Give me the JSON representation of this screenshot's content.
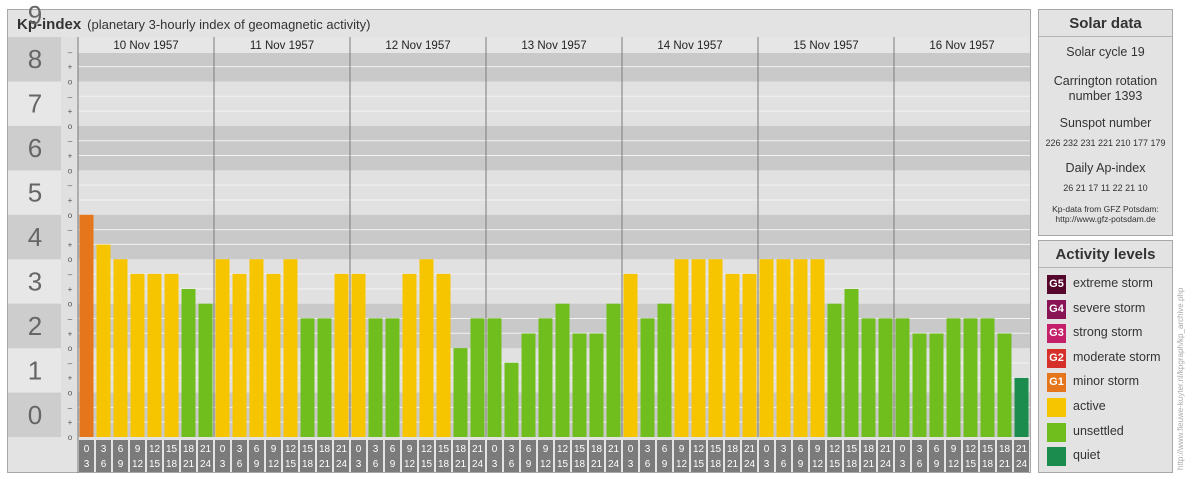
{
  "header": {
    "title": "Kp-index",
    "subtitle": "(planetary 3-hourly index of geomagnetic activity)"
  },
  "chart_data": {
    "type": "bar",
    "ylim": [
      0,
      9
    ],
    "y_ticks": [
      "0",
      "1",
      "2",
      "3",
      "4",
      "5",
      "6",
      "7",
      "8",
      "9"
    ],
    "minor_tick_labels": [
      "o",
      "+",
      "–"
    ],
    "days": [
      "10 Nov 1957",
      "11 Nov 1957",
      "12 Nov 1957",
      "13 Nov 1957",
      "14 Nov 1957",
      "15 Nov 1957",
      "16 Nov 1957"
    ],
    "hour_ticks": [
      [
        "0",
        "3"
      ],
      [
        "3",
        "6"
      ],
      [
        "6",
        "9"
      ],
      [
        "9",
        "12"
      ],
      [
        "12",
        "15"
      ],
      [
        "15",
        "18"
      ],
      [
        "18",
        "21"
      ],
      [
        "21",
        "24"
      ]
    ],
    "values": [
      5.0,
      4.33,
      4.0,
      3.67,
      3.67,
      3.67,
      3.33,
      3.0,
      4.0,
      3.67,
      4.0,
      3.67,
      4.0,
      2.67,
      2.67,
      3.67,
      3.67,
      2.67,
      2.67,
      3.67,
      4.0,
      3.67,
      2.0,
      2.67,
      2.67,
      1.67,
      2.33,
      2.67,
      3.0,
      2.33,
      2.33,
      3.0,
      3.67,
      2.67,
      3.0,
      4.0,
      4.0,
      4.0,
      3.67,
      3.67,
      4.0,
      4.0,
      4.0,
      4.0,
      3.0,
      3.33,
      2.67,
      2.67,
      2.67,
      2.33,
      2.33,
      2.67,
      2.67,
      2.67,
      2.33,
      1.33
    ],
    "colors": {
      "quiet": "#1b8c4e",
      "unsettled": "#6fbe1e",
      "active": "#f6c500",
      "G1": "#e5761c",
      "G2": "#d6302a",
      "G3": "#c4206a",
      "G4": "#8a1355",
      "G5": "#56082c"
    }
  },
  "solar": {
    "title": "Solar data",
    "cycle": "Solar cycle 19",
    "carrington_1": "Carrington rotation",
    "carrington_2": "number 1393",
    "sunspot_title": "Sunspot number",
    "sunspot_values": "226 232 231 221 210 177 179",
    "ap_title": "Daily Ap-index",
    "ap_values": "26 21 17 11 22 21 10",
    "source_1": "Kp-data from GFZ Potsdam:",
    "source_2": "http://www.gfz-potsdam.de"
  },
  "levels": {
    "title": "Activity levels",
    "items": [
      {
        "badge": "G5",
        "label": "extreme storm",
        "color": "#56082c"
      },
      {
        "badge": "G4",
        "label": "severe storm",
        "color": "#8a1355"
      },
      {
        "badge": "G3",
        "label": "strong storm",
        "color": "#c4206a"
      },
      {
        "badge": "G2",
        "label": "moderate storm",
        "color": "#d6302a"
      },
      {
        "badge": "G1",
        "label": "minor storm",
        "color": "#e5761c"
      },
      {
        "badge": "",
        "label": "active",
        "color": "#f6c500"
      },
      {
        "badge": "",
        "label": "unsettled",
        "color": "#6fbe1e"
      },
      {
        "badge": "",
        "label": "quiet",
        "color": "#1b8c4e"
      }
    ]
  },
  "credit": "http://www.fieuwe-kuyter.nl/kpgraph/kp_archive.php"
}
